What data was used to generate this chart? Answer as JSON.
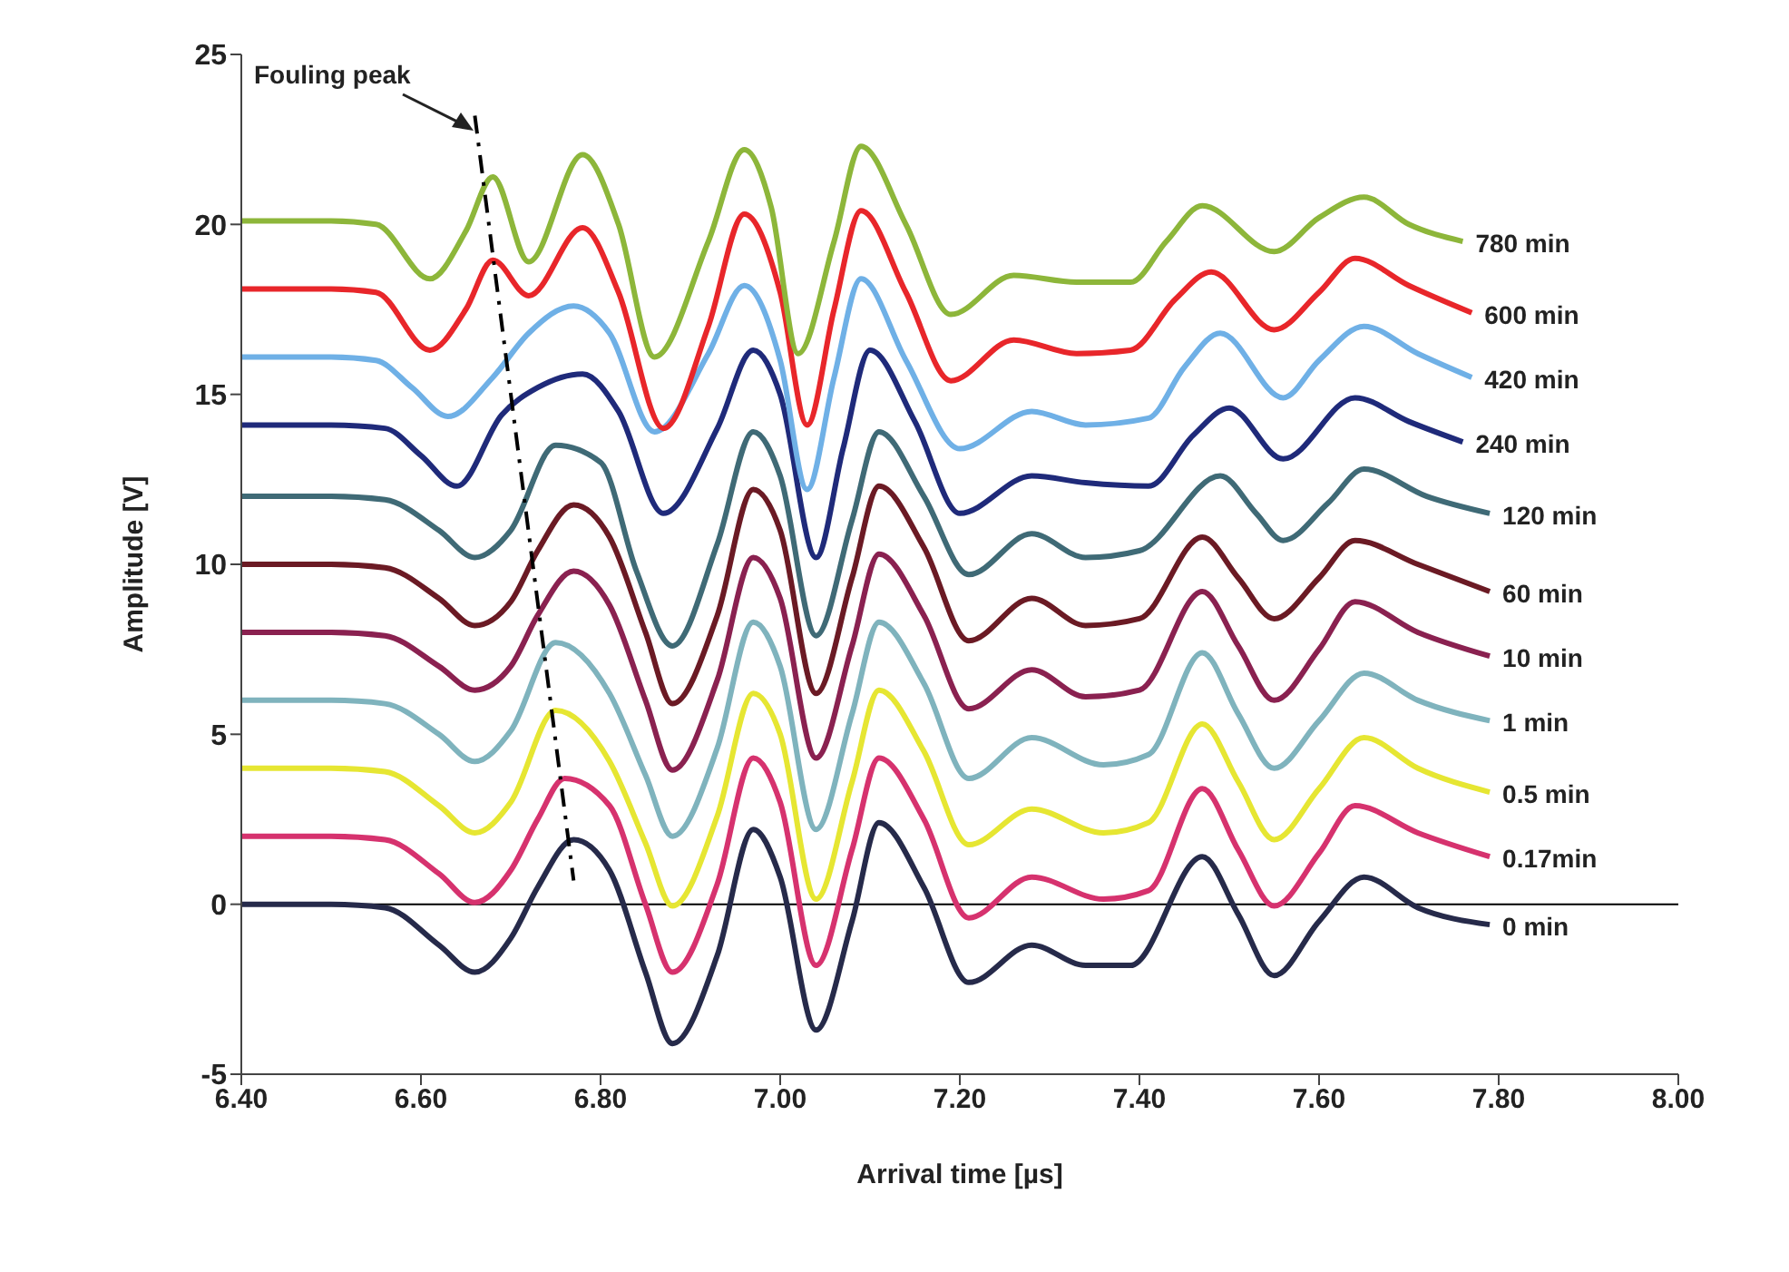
{
  "chart_data": {
    "type": "line",
    "xlabel": "Arrival time [µs]",
    "ylabel": "Amplitude [V]",
    "xlim": [
      6.4,
      8.0
    ],
    "xticks": [
      {
        "value": 6.4,
        "label": "6.40"
      },
      {
        "value": 6.6,
        "label": "6.60"
      },
      {
        "value": 6.8,
        "label": "6.80"
      },
      {
        "value": 7.0,
        "label": "7.00"
      },
      {
        "value": 7.2,
        "label": "7.20"
      },
      {
        "value": 7.4,
        "label": "7.40"
      },
      {
        "value": 7.6,
        "label": "7.60"
      },
      {
        "value": 7.8,
        "label": "7.80"
      },
      {
        "value": 8.0,
        "label": "8.00"
      }
    ],
    "ylim": [
      -5,
      25
    ],
    "yticks": [
      -5,
      0,
      5,
      10,
      15,
      20,
      25
    ],
    "grid": false,
    "marker": "none",
    "ref_lines": [
      {
        "axis": "y",
        "value": 0,
        "color": "#000000"
      }
    ],
    "annotations": [
      "Fouling peak"
    ],
    "series": [
      {
        "name": "0 min",
        "color": "#262a4a",
        "x": [
          6.4,
          6.5,
          6.56,
          6.62,
          6.66,
          6.7,
          6.73,
          6.77,
          6.81,
          6.85,
          6.88,
          6.93,
          6.97,
          7.0,
          7.04,
          7.08,
          7.11,
          7.16,
          7.21,
          7.28,
          7.34,
          7.39,
          7.47,
          7.51,
          7.55,
          7.6,
          7.65,
          7.71,
          7.79
        ],
        "values": [
          0,
          0,
          -0.1,
          -1.2,
          -2.0,
          -1.0,
          0.5,
          1.9,
          1.0,
          -2.0,
          -4.1,
          -1.5,
          2.2,
          0.8,
          -3.7,
          -0.5,
          2.4,
          0.5,
          -2.3,
          -1.2,
          -1.8,
          -1.8,
          1.4,
          -0.3,
          -2.1,
          -0.5,
          0.8,
          -0.1,
          -0.6
        ]
      },
      {
        "name": "0.17min",
        "color": "#d6326e",
        "x": [
          6.4,
          6.5,
          6.56,
          6.62,
          6.66,
          6.7,
          6.73,
          6.76,
          6.81,
          6.85,
          6.88,
          6.93,
          6.97,
          7.0,
          7.04,
          7.08,
          7.11,
          7.16,
          7.21,
          7.28,
          7.36,
          7.41,
          7.47,
          7.51,
          7.55,
          7.6,
          7.64,
          7.71,
          7.79
        ],
        "values": [
          2,
          2,
          1.9,
          0.9,
          0.05,
          1.0,
          2.5,
          3.7,
          2.9,
          0,
          -2.0,
          0.6,
          4.3,
          3.0,
          -1.8,
          1.6,
          4.3,
          2.5,
          -0.4,
          0.8,
          0.15,
          0.4,
          3.4,
          1.6,
          -0.05,
          1.5,
          2.9,
          2.1,
          1.4
        ]
      },
      {
        "name": "0.5 min",
        "color": "#e6e632",
        "x": [
          6.4,
          6.5,
          6.56,
          6.62,
          6.66,
          6.7,
          6.75,
          6.81,
          6.85,
          6.88,
          6.93,
          6.97,
          7.0,
          7.04,
          7.08,
          7.11,
          7.16,
          7.21,
          7.28,
          7.36,
          7.41,
          7.47,
          7.51,
          7.55,
          7.6,
          7.65,
          7.71,
          7.79
        ],
        "values": [
          4,
          4,
          3.9,
          2.9,
          2.1,
          3.0,
          5.7,
          4.2,
          1.8,
          -0.05,
          2.6,
          6.2,
          5.0,
          0.15,
          3.6,
          6.3,
          4.5,
          1.75,
          2.8,
          2.1,
          2.4,
          5.3,
          3.6,
          1.9,
          3.4,
          4.9,
          4.0,
          3.3
        ]
      },
      {
        "name": "1 min",
        "color": "#7fb3bd",
        "x": [
          6.4,
          6.5,
          6.56,
          6.62,
          6.66,
          6.7,
          6.75,
          6.81,
          6.85,
          6.88,
          6.93,
          6.97,
          7.0,
          7.04,
          7.08,
          7.11,
          7.16,
          7.21,
          7.28,
          7.36,
          7.41,
          7.47,
          7.51,
          7.55,
          7.6,
          7.65,
          7.71,
          7.79
        ],
        "values": [
          6,
          6,
          5.9,
          5.0,
          4.2,
          5.1,
          7.7,
          6.2,
          3.8,
          2.0,
          4.6,
          8.3,
          7.0,
          2.2,
          5.6,
          8.3,
          6.5,
          3.7,
          4.9,
          4.1,
          4.4,
          7.4,
          5.6,
          4.0,
          5.4,
          6.8,
          6.0,
          5.4
        ]
      },
      {
        "name": "10 min",
        "color": "#8a2150",
        "x": [
          6.4,
          6.5,
          6.56,
          6.62,
          6.66,
          6.7,
          6.73,
          6.77,
          6.81,
          6.85,
          6.88,
          6.93,
          6.97,
          7.0,
          7.04,
          7.08,
          7.11,
          7.16,
          7.21,
          7.28,
          7.34,
          7.4,
          7.47,
          7.51,
          7.55,
          7.6,
          7.64,
          7.71,
          7.79
        ],
        "values": [
          8,
          8,
          7.9,
          7.0,
          6.3,
          7.0,
          8.5,
          9.8,
          8.8,
          6.0,
          3.95,
          6.6,
          10.2,
          9.0,
          4.3,
          7.6,
          10.3,
          8.5,
          5.75,
          6.9,
          6.1,
          6.3,
          9.2,
          7.6,
          6.0,
          7.5,
          8.9,
          8.0,
          7.3
        ]
      },
      {
        "name": "60 min",
        "color": "#6b1a24",
        "x": [
          6.4,
          6.5,
          6.56,
          6.62,
          6.66,
          6.7,
          6.73,
          6.77,
          6.81,
          6.85,
          6.88,
          6.93,
          6.97,
          7.0,
          7.04,
          7.08,
          7.11,
          7.16,
          7.21,
          7.28,
          7.34,
          7.4,
          7.47,
          7.51,
          7.55,
          7.6,
          7.64,
          7.71,
          7.79
        ],
        "values": [
          10,
          10,
          9.9,
          9.0,
          8.2,
          8.9,
          10.4,
          11.75,
          10.8,
          8.0,
          5.9,
          8.5,
          12.2,
          11.0,
          6.2,
          9.6,
          12.3,
          10.5,
          7.75,
          9.0,
          8.2,
          8.4,
          10.8,
          9.6,
          8.4,
          9.6,
          10.7,
          10.0,
          9.2
        ]
      },
      {
        "name": "120 min",
        "color": "#3f6a76",
        "x": [
          6.4,
          6.5,
          6.56,
          6.62,
          6.66,
          6.7,
          6.75,
          6.8,
          6.84,
          6.88,
          6.93,
          6.97,
          7.0,
          7.04,
          7.08,
          7.11,
          7.16,
          7.21,
          7.28,
          7.34,
          7.4,
          7.49,
          7.53,
          7.56,
          7.61,
          7.65,
          7.72,
          7.79
        ],
        "values": [
          12,
          12,
          11.9,
          11.0,
          10.2,
          11.0,
          13.5,
          13.0,
          9.8,
          7.6,
          10.6,
          13.9,
          12.6,
          7.9,
          11.3,
          13.9,
          12.0,
          9.7,
          10.9,
          10.2,
          10.4,
          12.6,
          11.5,
          10.7,
          11.8,
          12.8,
          12.0,
          11.5
        ]
      },
      {
        "name": "240 min",
        "color": "#1f2a7a",
        "x": [
          6.4,
          6.5,
          6.56,
          6.6,
          6.64,
          6.69,
          6.73,
          6.78,
          6.82,
          6.87,
          6.93,
          6.97,
          7.0,
          7.04,
          7.07,
          7.1,
          7.15,
          7.2,
          7.28,
          7.34,
          7.41,
          7.46,
          7.5,
          7.56,
          7.64,
          7.7,
          7.76
        ],
        "values": [
          14.1,
          14.1,
          14.0,
          13.2,
          12.3,
          14.4,
          15.2,
          15.6,
          14.5,
          11.5,
          14.0,
          16.3,
          15.0,
          10.2,
          13.4,
          16.3,
          14.2,
          11.5,
          12.6,
          12.4,
          12.3,
          13.8,
          14.6,
          13.1,
          14.9,
          14.2,
          13.6
        ]
      },
      {
        "name": "420 min",
        "color": "#6fb0e6",
        "x": [
          6.4,
          6.5,
          6.55,
          6.59,
          6.63,
          6.68,
          6.72,
          6.77,
          6.81,
          6.86,
          6.92,
          6.96,
          7.0,
          7.03,
          7.06,
          7.09,
          7.14,
          7.2,
          7.28,
          7.34,
          7.41,
          7.45,
          7.49,
          7.56,
          7.6,
          7.65,
          7.71,
          7.77
        ],
        "values": [
          16.1,
          16.1,
          16.0,
          15.2,
          14.35,
          15.5,
          16.8,
          17.6,
          16.8,
          13.9,
          16.2,
          18.2,
          16.0,
          12.2,
          15.5,
          18.4,
          16.0,
          13.4,
          14.5,
          14.1,
          14.3,
          15.8,
          16.8,
          14.9,
          16.0,
          17.0,
          16.2,
          15.5
        ]
      },
      {
        "name": "600 min",
        "color": "#e8262a",
        "x": [
          6.4,
          6.5,
          6.55,
          6.61,
          6.65,
          6.68,
          6.72,
          6.78,
          6.82,
          6.87,
          6.92,
          6.96,
          7.0,
          7.03,
          7.06,
          7.09,
          7.14,
          7.19,
          7.26,
          7.33,
          7.39,
          7.44,
          7.48,
          7.55,
          7.6,
          7.64,
          7.7,
          7.77
        ],
        "values": [
          18.1,
          18.1,
          18.0,
          16.3,
          17.5,
          18.95,
          17.9,
          19.9,
          18.0,
          14.0,
          17.0,
          20.3,
          18.0,
          14.1,
          17.5,
          20.4,
          18.0,
          15.4,
          16.6,
          16.2,
          16.3,
          17.8,
          18.6,
          16.9,
          18.0,
          19.0,
          18.2,
          17.4
        ]
      },
      {
        "name": "780 min",
        "color": "#8db63a",
        "x": [
          6.4,
          6.5,
          6.55,
          6.61,
          6.65,
          6.68,
          6.72,
          6.78,
          6.82,
          6.86,
          6.92,
          6.96,
          6.99,
          7.02,
          7.06,
          7.09,
          7.14,
          7.19,
          7.26,
          7.33,
          7.39,
          7.43,
          7.47,
          7.55,
          7.6,
          7.65,
          7.7,
          7.76
        ],
        "values": [
          20.1,
          20.1,
          20.0,
          18.4,
          19.8,
          21.4,
          18.9,
          22.05,
          20.0,
          16.1,
          19.5,
          22.2,
          20.5,
          16.2,
          19.5,
          22.3,
          20.0,
          17.35,
          18.5,
          18.3,
          18.3,
          19.5,
          20.55,
          19.2,
          20.2,
          20.8,
          20.0,
          19.5
        ]
      },
      {
        "type": "line",
        "color": "#000000",
        "line_style": "dashed",
        "x": [
          6.66,
          6.77
        ],
        "values": [
          23.2,
          0.7
        ]
      }
    ]
  }
}
